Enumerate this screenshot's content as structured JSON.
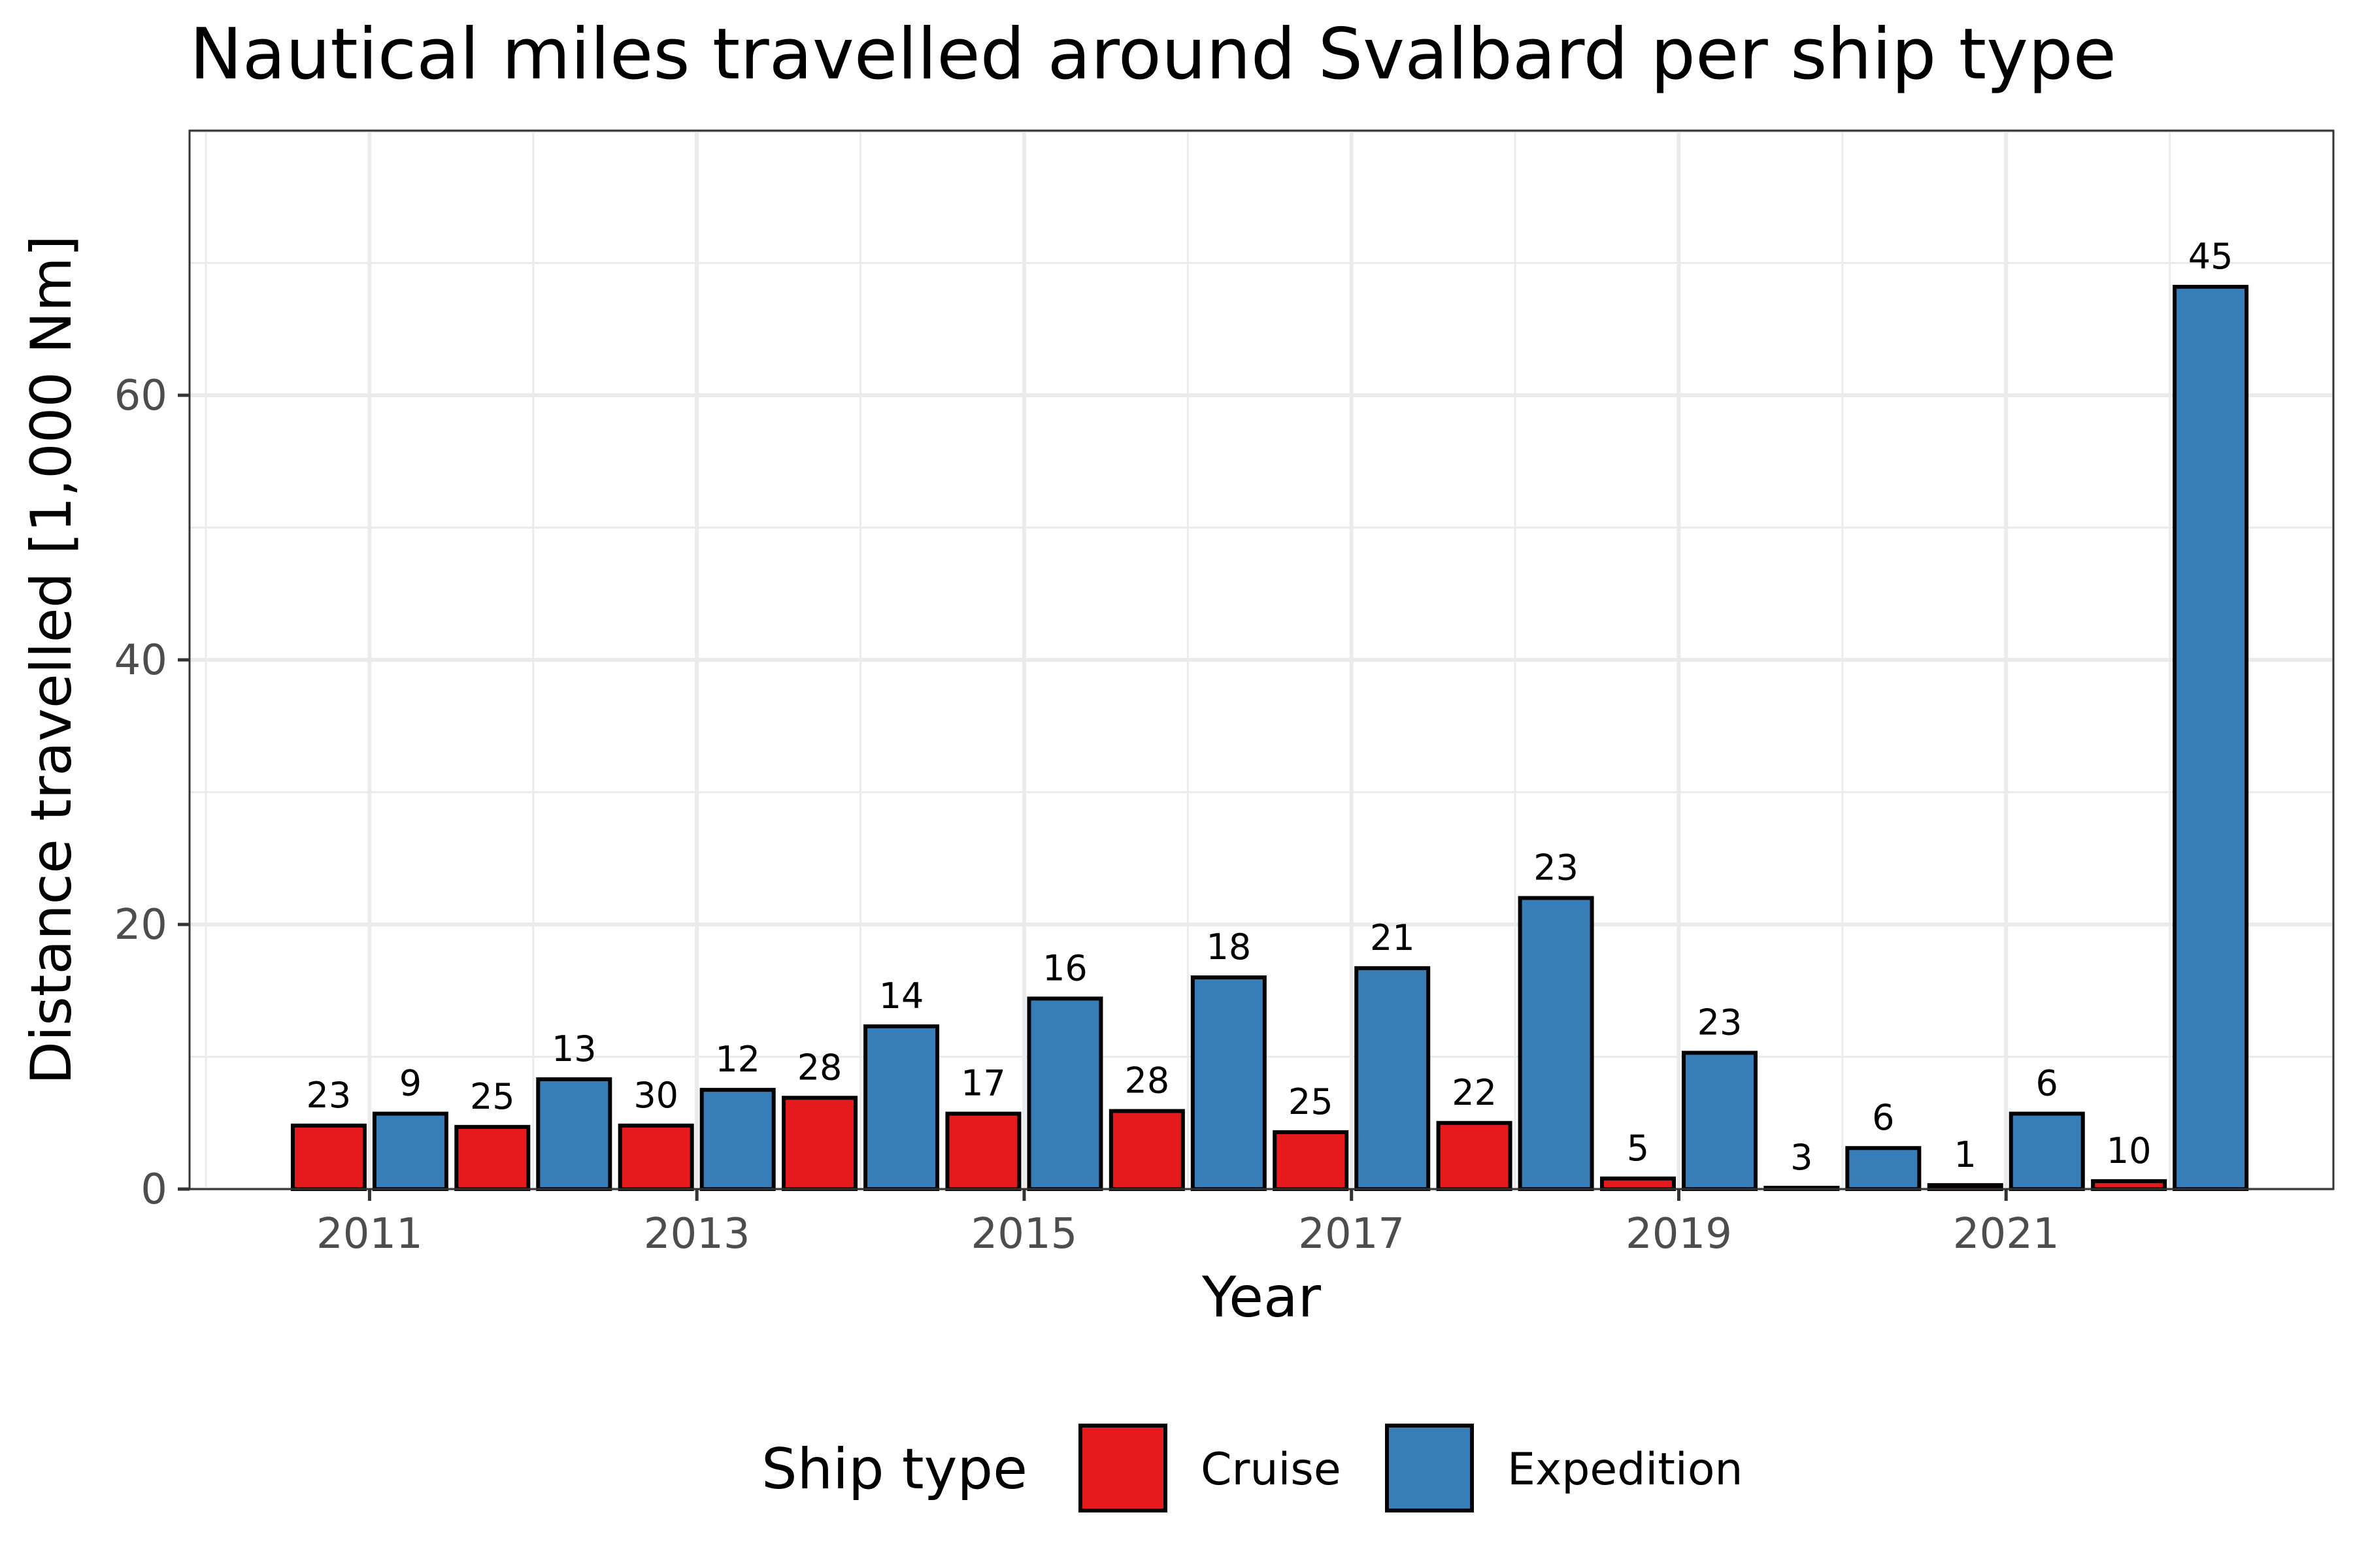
{
  "chart_data": {
    "type": "bar",
    "title": "Nautical miles travelled around Svalbard per ship type",
    "xlabel": "Year",
    "ylabel": "Distance travelled [1,000 Nm]",
    "ylim": [
      0,
      80
    ],
    "y_ticks": [
      0,
      20,
      40,
      60
    ],
    "x_ticks": [
      "2011",
      "2013",
      "2015",
      "2017",
      "2019",
      "2021"
    ],
    "grid": true,
    "legend_position": "bottom",
    "legend_title": "Ship type",
    "categories": [
      "2011",
      "2012",
      "2013",
      "2014",
      "2015",
      "2016",
      "2017",
      "2018",
      "2019",
      "2020",
      "2021",
      "2022"
    ],
    "series": [
      {
        "name": "Cruise",
        "color": "#E41A1C",
        "values": [
          4.8,
          4.7,
          4.8,
          6.9,
          5.7,
          5.9,
          4.3,
          5.0,
          0.8,
          0.1,
          0.3,
          0.6
        ],
        "labels": [
          "23",
          "25",
          "30",
          "28",
          "17",
          "28",
          "25",
          "22",
          "5",
          "3",
          "1",
          "10"
        ]
      },
      {
        "name": "Expedition",
        "color": "#377EB8",
        "values": [
          5.7,
          8.3,
          7.5,
          12.3,
          14.4,
          16.0,
          16.7,
          22.0,
          10.3,
          3.1,
          5.7,
          68.2
        ],
        "labels": [
          "9",
          "13",
          "12",
          "14",
          "16",
          "18",
          "21",
          "23",
          "23",
          "6",
          "6",
          "45"
        ]
      }
    ]
  }
}
